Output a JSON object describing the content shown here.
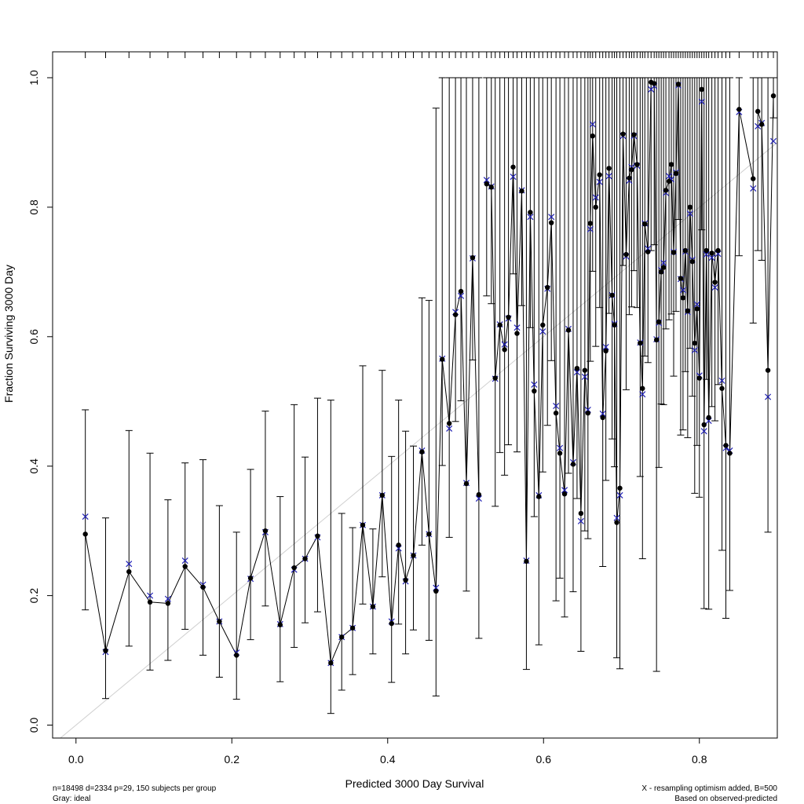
{
  "chart_data": {
    "type": "scatter",
    "xlabel": "Predicted  3000 Day Survival",
    "ylabel": "Fraction Surviving 3000 Day",
    "xlim": [
      -0.03,
      0.9
    ],
    "ylim": [
      -0.02,
      1.04
    ],
    "x_ticks": [
      "0.0",
      "0.2",
      "0.4",
      "0.6",
      "0.8"
    ],
    "y_ticks": [
      "0.0",
      "0.2",
      "0.4",
      "0.6",
      "0.8",
      "1.0"
    ],
    "grid": false,
    "footnote_left": [
      "n=18498 d=2334 p=29, 150 subjects per group",
      "Gray: ideal"
    ],
    "footnote_right": [
      "X - resampling optimism added, B=500",
      "Based on observed-predicted"
    ],
    "colors": {
      "observed": "#000000",
      "corrected": "#1f1fb4",
      "ideal": "#d0d0d0"
    },
    "series": [
      {
        "x": [
          0.012,
          0.038,
          0.068,
          0.095,
          0.118,
          0.14,
          0.163,
          0.184,
          0.206,
          0.224,
          0.243,
          0.262,
          0.28,
          0.294,
          0.31,
          0.327,
          0.341,
          0.355,
          0.368,
          0.381,
          0.393,
          0.405,
          0.414,
          0.423,
          0.433,
          0.444,
          0.453,
          0.462,
          0.47,
          0.479,
          0.487,
          0.494,
          0.501,
          0.509,
          0.517
        ],
        "y": [
          0.295,
          0.115,
          0.237,
          0.19,
          0.188,
          0.245,
          0.213,
          0.16,
          0.108,
          0.227,
          0.3,
          0.155,
          0.243,
          0.257,
          0.292,
          0.096,
          0.136,
          0.15,
          0.309,
          0.183,
          0.355,
          0.157,
          0.278,
          0.224,
          0.262,
          0.422,
          0.295,
          0.207,
          0.565,
          0.466,
          0.634,
          0.67,
          0.373,
          0.722,
          0.356
        ],
        "ylo": [
          0.178,
          0.041,
          0.122,
          0.085,
          0.1,
          0.148,
          0.108,
          0.074,
          0.04,
          0.132,
          0.184,
          0.067,
          0.12,
          0.158,
          0.175,
          0.018,
          0.054,
          0.078,
          0.187,
          0.11,
          0.229,
          0.066,
          0.156,
          0.11,
          0.147,
          0.278,
          0.131,
          0.045,
          0.401,
          0.29,
          0.469,
          0.501,
          0.207,
          0.564,
          0.134
        ],
        "yhi": [
          0.487,
          0.32,
          0.455,
          0.42,
          0.348,
          0.405,
          0.41,
          0.339,
          0.298,
          0.395,
          0.485,
          0.353,
          0.495,
          0.414,
          0.505,
          0.502,
          0.327,
          0.305,
          0.555,
          0.303,
          0.548,
          0.415,
          0.502,
          0.454,
          0.431,
          0.66,
          0.656,
          0.953,
          1.0,
          1.0,
          1.0,
          1.0,
          1.0,
          1.0,
          1.0
        ],
        "corrected": [
          0.322,
          0.113,
          0.249,
          0.2,
          0.195,
          0.254,
          0.217,
          0.16,
          0.112,
          0.226,
          0.298,
          0.156,
          0.24,
          0.257,
          0.29,
          0.096,
          0.136,
          0.15,
          0.309,
          0.183,
          0.355,
          0.16,
          0.273,
          0.222,
          0.262,
          0.424,
          0.295,
          0.212,
          0.566,
          0.458,
          0.638,
          0.663,
          0.374,
          0.721,
          0.35
        ]
      },
      {
        "x": [
          0.527,
          0.533,
          0.538,
          0.544,
          0.55,
          0.555,
          0.561,
          0.566,
          0.572,
          0.578,
          0.583,
          0.588,
          0.594,
          0.599,
          0.605,
          0.61,
          0.616,
          0.621,
          0.627,
          0.632,
          0.638,
          0.643,
          0.648,
          0.653,
          0.657,
          0.66,
          0.663,
          0.667,
          0.672,
          0.676,
          0.68,
          0.684,
          0.688,
          0.691,
          0.694,
          0.698,
          0.702,
          0.706,
          0.71,
          0.713,
          0.716,
          0.72,
          0.724,
          0.727,
          0.73,
          0.734,
          0.738,
          0.742,
          0.745
        ],
        "y": [
          0.836,
          0.831,
          0.536,
          0.618,
          0.58,
          0.63,
          0.862,
          0.605,
          0.825,
          0.253,
          0.792,
          0.516,
          0.353,
          0.618,
          0.676,
          0.776,
          0.482,
          0.42,
          0.357,
          0.61,
          0.403,
          0.551,
          0.327,
          0.548,
          0.482,
          0.775,
          0.91,
          0.8,
          0.85,
          0.475,
          0.578,
          0.86,
          0.664,
          0.618,
          0.313,
          0.366,
          0.913,
          0.727,
          0.845,
          0.858,
          0.912,
          0.866,
          0.59,
          0.52,
          0.774,
          0.731,
          0.993,
          0.991,
          0.595
        ],
        "ylo": [
          0.663,
          0.651,
          0.338,
          0.421,
          0.386,
          0.433,
          0.697,
          0.422,
          0.648,
          0.086,
          0.614,
          0.322,
          0.124,
          0.391,
          0.463,
          0.563,
          0.192,
          0.227,
          0.167,
          0.389,
          0.206,
          0.35,
          0.114,
          0.3,
          0.288,
          0.562,
          0.701,
          0.585,
          0.645,
          0.245,
          0.378,
          0.636,
          0.442,
          0.399,
          0.104,
          0.087,
          0.71,
          0.518,
          0.634,
          0.646,
          0.702,
          0.645,
          0.384,
          0.257,
          0.57,
          0.56,
          0.733,
          0.742,
          0.083
        ],
        "yhi": [
          1.0,
          1.0,
          1.0,
          1.0,
          1.0,
          1.0,
          1.0,
          1.0,
          1.0,
          1.0,
          1.0,
          1.0,
          1.0,
          1.0,
          1.0,
          1.0,
          1.0,
          1.0,
          1.0,
          1.0,
          1.0,
          1.0,
          1.0,
          1.0,
          1.0,
          1.0,
          1.0,
          1.0,
          1.0,
          1.0,
          1.0,
          1.0,
          1.0,
          1.0,
          1.0,
          1.0,
          1.0,
          1.0,
          1.0,
          1.0,
          1.0,
          1.0,
          1.0,
          1.0,
          1.0,
          1.0,
          1.0,
          1.0,
          1.0
        ],
        "corrected": [
          0.842,
          0.832,
          0.535,
          0.619,
          0.588,
          0.628,
          0.847,
          0.614,
          0.826,
          0.254,
          0.785,
          0.526,
          0.355,
          0.608,
          0.674,
          0.785,
          0.493,
          0.428,
          0.363,
          0.612,
          0.406,
          0.545,
          0.315,
          0.538,
          0.487,
          0.766,
          0.928,
          0.815,
          0.839,
          0.481,
          0.584,
          0.848,
          0.664,
          0.62,
          0.32,
          0.355,
          0.91,
          0.724,
          0.841,
          0.862,
          0.91,
          0.864,
          0.591,
          0.511,
          0.775,
          0.736,
          0.982,
          0.987,
          0.596
        ]
      },
      {
        "x": [
          0.748,
          0.751,
          0.754,
          0.757,
          0.761,
          0.764,
          0.767,
          0.77,
          0.773,
          0.776,
          0.779,
          0.782,
          0.785,
          0.788,
          0.791,
          0.794,
          0.797,
          0.8,
          0.803,
          0.806,
          0.809,
          0.812,
          0.816,
          0.82,
          0.824,
          0.829,
          0.834,
          0.839,
          0.851,
          0.869
        ],
        "y": [
          0.623,
          0.7,
          0.707,
          0.826,
          0.84,
          0.866,
          0.73,
          0.852,
          0.99,
          0.69,
          0.66,
          0.733,
          0.64,
          0.8,
          0.716,
          0.59,
          0.643,
          0.536,
          0.982,
          0.464,
          0.733,
          0.475,
          0.729,
          0.684,
          0.733,
          0.52,
          0.432,
          0.42,
          0.951,
          0.844
        ],
        "ylo": [
          0.398,
          0.496,
          0.495,
          0.612,
          0.626,
          0.635,
          0.539,
          0.639,
          0.781,
          0.448,
          0.456,
          0.546,
          0.444,
          0.582,
          0.508,
          0.358,
          0.432,
          0.352,
          0.765,
          0.18,
          0.534,
          0.179,
          0.492,
          0.47,
          0.526,
          0.27,
          0.165,
          0.208,
          0.725,
          0.621
        ],
        "yhi": [
          1.0,
          1.0,
          1.0,
          1.0,
          1.0,
          1.0,
          1.0,
          1.0,
          1.0,
          1.0,
          1.0,
          1.0,
          1.0,
          1.0,
          1.0,
          1.0,
          1.0,
          1.0,
          1.0,
          1.0,
          1.0,
          1.0,
          1.0,
          1.0,
          1.0,
          1.0,
          1.0,
          1.0,
          1.0,
          1.0
        ],
        "corrected": [
          0.621,
          0.703,
          0.714,
          0.822,
          0.848,
          0.843,
          0.731,
          0.854,
          0.988,
          0.689,
          0.672,
          0.731,
          0.638,
          0.79,
          0.719,
          0.579,
          0.65,
          0.54,
          0.963,
          0.454,
          0.727,
          0.47,
          0.722,
          0.676,
          0.728,
          0.532,
          0.428,
          0.424,
          0.947,
          0.829
        ]
      },
      {
        "x": [
          0.875,
          0.88,
          0.888,
          0.895
        ],
        "y": [
          0.948,
          0.928,
          0.548,
          0.972
        ],
        "ylo": [
          0.733,
          0.718,
          0.298,
          0.938
        ],
        "yhi": [
          1.0,
          1.0,
          1.0,
          1.0
        ],
        "corrected": [
          0.925,
          0.93,
          0.507,
          0.902
        ]
      }
    ]
  }
}
